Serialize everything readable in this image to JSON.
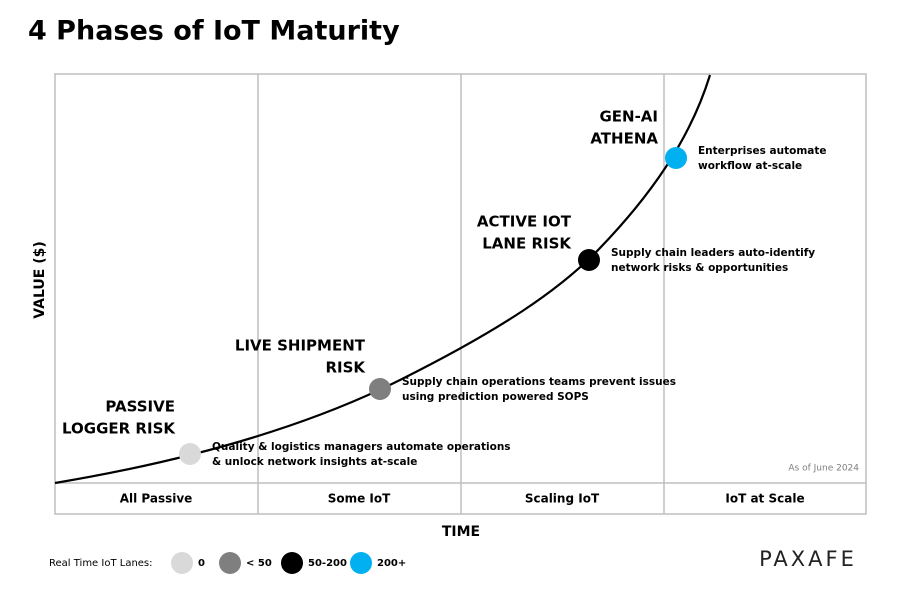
{
  "title": "4 Phases of IoT Maturity",
  "y_axis_label": "VALUE ($)",
  "x_axis_label": "TIME",
  "phases": [
    "All Passive",
    "Some IoT",
    "Scaling IoT",
    "IoT at Scale"
  ],
  "points": [
    {
      "title": [
        "PASSIVE",
        "LOGGER RISK"
      ],
      "description": [
        "Quality & logistics managers automate operations",
        "& unlock network insights at-scale"
      ],
      "color": "#d9d9d9"
    },
    {
      "title": [
        "LIVE SHIPMENT",
        "RISK"
      ],
      "description": [
        "Supply chain operations teams prevent issues",
        "using prediction powered SOPS"
      ],
      "color": "#7f7f7f"
    },
    {
      "title": [
        "ACTIVE IOT",
        "LANE RISK"
      ],
      "description": [
        "Supply chain leaders auto-identify",
        "network risks & opportunities"
      ],
      "color": "#000000"
    },
    {
      "title": [
        "GEN-AI",
        "ATHENA"
      ],
      "description": [
        "Enterprises automate",
        "workflow at-scale"
      ],
      "color": "#00b0f0"
    }
  ],
  "note": "As of June 2024",
  "legend": {
    "label": "Real Time IoT Lanes:",
    "items": [
      "0",
      "< 50",
      "50-200",
      "200+"
    ]
  },
  "logo": "PAXAFE"
}
